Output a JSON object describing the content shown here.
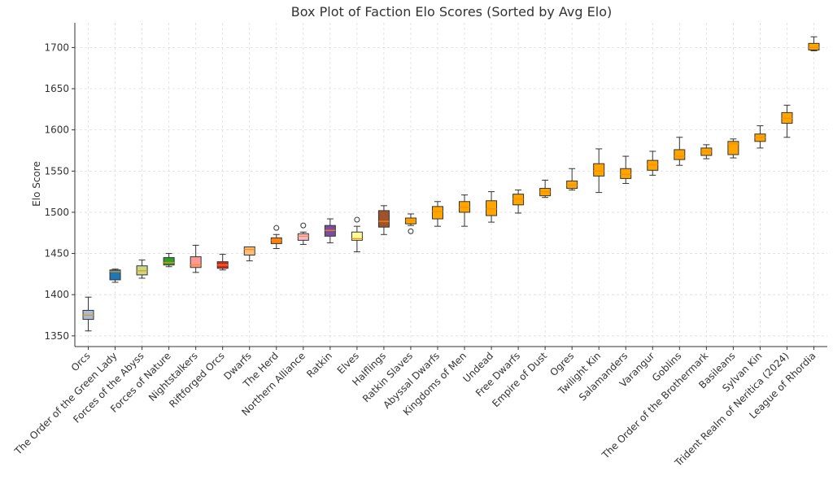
{
  "chart_data": {
    "type": "box",
    "title": "Box Plot of Faction Elo Scores (Sorted by Avg Elo)",
    "xlabel": "",
    "ylabel": "Elo Score",
    "ylim": [
      1337,
      1730
    ],
    "yticks": [
      1350,
      1400,
      1450,
      1500,
      1550,
      1600,
      1650,
      1700
    ],
    "grid": true,
    "default_color": "#FFA500",
    "categories": [
      "Orcs",
      "The Order of the Green Lady",
      "Forces of the Abyss",
      "Forces of Nature",
      "Nightstalkers",
      "Riftforged Orcs",
      "Dwarfs",
      "The Herd",
      "Northern Alliance",
      "Ratkin",
      "Elves",
      "Halflings",
      "Ratkin Slaves",
      "Abyssal Dwarfs",
      "Kingdoms of Men",
      "Undead",
      "Free Dwarfs",
      "Empire of Dust",
      "Ogres",
      "Twilight Kin",
      "Salamanders",
      "Varangur",
      "Goblins",
      "The Order of the Brothermark",
      "Basileans",
      "Sylvan Kin",
      "Trident Realm of Neritica (2024)",
      "League of Rhordia"
    ],
    "boxes": [
      {
        "min": 1356,
        "q1": 1370,
        "median": 1375,
        "q3": 1381,
        "max": 1397,
        "color": "#A6BDD7",
        "outliers": []
      },
      {
        "min": 1415,
        "q1": 1418,
        "median": 1428,
        "q3": 1430,
        "max": 1431,
        "color": "#1F77B4",
        "outliers": []
      },
      {
        "min": 1420,
        "q1": 1424,
        "median": 1429,
        "q3": 1435,
        "max": 1442,
        "color": "#C5D98A",
        "outliers": []
      },
      {
        "min": 1434,
        "q1": 1436,
        "median": 1439,
        "q3": 1445,
        "max": 1450,
        "color": "#2CA02C",
        "outliers": []
      },
      {
        "min": 1427,
        "q1": 1433,
        "median": 1436,
        "q3": 1446,
        "max": 1460,
        "color": "#FF9896",
        "outliers": []
      },
      {
        "min": 1430,
        "q1": 1432,
        "median": 1436,
        "q3": 1440,
        "max": 1449,
        "color": "#D62728",
        "outliers": []
      },
      {
        "min": 1441,
        "q1": 1448,
        "median": 1455,
        "q3": 1458,
        "max": 1458,
        "color": "#FFBB78",
        "outliers": []
      },
      {
        "min": 1456,
        "q1": 1462,
        "median": 1466,
        "q3": 1469,
        "max": 1473,
        "color": "#FF7F0E",
        "outliers": [
          1481
        ]
      },
      {
        "min": 1461,
        "q1": 1466,
        "median": 1471,
        "q3": 1474,
        "max": 1476,
        "color": "#F7B6D2",
        "outliers": [
          1484
        ]
      },
      {
        "min": 1463,
        "q1": 1471,
        "median": 1478,
        "q3": 1484,
        "max": 1492,
        "color": "#7B4DA0",
        "outliers": []
      },
      {
        "min": 1452,
        "q1": 1466,
        "median": 1468,
        "q3": 1476,
        "max": 1483,
        "color": "#FFFF99",
        "outliers": [
          1491
        ]
      },
      {
        "min": 1473,
        "q1": 1482,
        "median": 1489,
        "q3": 1502,
        "max": 1508,
        "color": "#A0522D",
        "outliers": []
      },
      {
        "min": 1484,
        "q1": 1486,
        "median": 1490,
        "q3": 1493,
        "max": 1498,
        "color": null,
        "outliers": [
          1477
        ]
      },
      {
        "min": 1483,
        "q1": 1492,
        "median": 1501,
        "q3": 1507,
        "max": 1513,
        "color": null,
        "outliers": []
      },
      {
        "min": 1483,
        "q1": 1500,
        "median": 1506,
        "q3": 1513,
        "max": 1521,
        "color": null,
        "outliers": []
      },
      {
        "min": 1488,
        "q1": 1496,
        "median": 1504,
        "q3": 1514,
        "max": 1525,
        "color": null,
        "outliers": []
      },
      {
        "min": 1499,
        "q1": 1509,
        "median": 1516,
        "q3": 1522,
        "max": 1527,
        "color": null,
        "outliers": []
      },
      {
        "min": 1518,
        "q1": 1520,
        "median": 1525,
        "q3": 1529,
        "max": 1539,
        "color": null,
        "outliers": []
      },
      {
        "min": 1527,
        "q1": 1529,
        "median": 1533,
        "q3": 1538,
        "max": 1553,
        "color": null,
        "outliers": []
      },
      {
        "min": 1524,
        "q1": 1544,
        "median": 1550,
        "q3": 1559,
        "max": 1577,
        "color": null,
        "outliers": []
      },
      {
        "min": 1535,
        "q1": 1541,
        "median": 1546,
        "q3": 1553,
        "max": 1568,
        "color": null,
        "outliers": []
      },
      {
        "min": 1545,
        "q1": 1551,
        "median": 1558,
        "q3": 1563,
        "max": 1574,
        "color": null,
        "outliers": []
      },
      {
        "min": 1557,
        "q1": 1564,
        "median": 1568,
        "q3": 1576,
        "max": 1591,
        "color": null,
        "outliers": []
      },
      {
        "min": 1565,
        "q1": 1569,
        "median": 1574,
        "q3": 1578,
        "max": 1582,
        "color": null,
        "outliers": []
      },
      {
        "min": 1566,
        "q1": 1570,
        "median": 1583,
        "q3": 1586,
        "max": 1589,
        "color": null,
        "outliers": []
      },
      {
        "min": 1578,
        "q1": 1586,
        "median": 1591,
        "q3": 1595,
        "max": 1605,
        "color": null,
        "outliers": []
      },
      {
        "min": 1591,
        "q1": 1608,
        "median": 1614,
        "q3": 1621,
        "max": 1630,
        "color": null,
        "outliers": []
      },
      {
        "min": 1696,
        "q1": 1697,
        "median": 1700,
        "q3": 1705,
        "max": 1713,
        "color": null,
        "outliers": []
      }
    ]
  }
}
